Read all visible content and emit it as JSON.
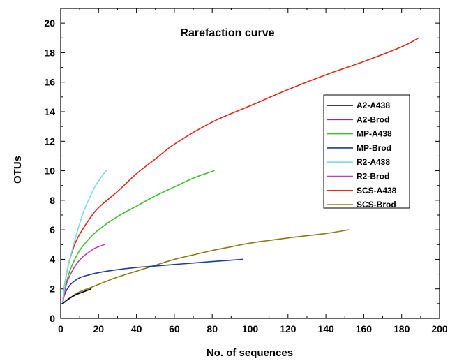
{
  "chart_data": {
    "type": "line",
    "title": "Rarefaction curve",
    "xlabel": "No. of sequences",
    "ylabel": "OTUs",
    "xlim": [
      0,
      200
    ],
    "ylim": [
      0,
      21
    ],
    "xticks": [
      0,
      20,
      40,
      60,
      80,
      100,
      120,
      140,
      160,
      180,
      200
    ],
    "yticks": [
      0,
      2,
      4,
      6,
      8,
      10,
      12,
      14,
      16,
      18,
      20
    ],
    "grid": false,
    "legend_position": "right",
    "series": [
      {
        "name": "A2-A438",
        "color": "#000000",
        "points": [
          [
            1,
            1
          ],
          [
            4,
            1.3
          ],
          [
            8,
            1.6
          ],
          [
            12,
            1.8
          ],
          [
            16,
            2
          ]
        ]
      },
      {
        "name": "A2-Brod",
        "color": "#7b2fbe",
        "points": [
          [
            1,
            1
          ],
          [
            4,
            1.3
          ],
          [
            8,
            1.6
          ],
          [
            12,
            1.8
          ],
          [
            15,
            1.95
          ]
        ]
      },
      {
        "name": "MP-A438",
        "color": "#3fbf2f",
        "points": [
          [
            1,
            1
          ],
          [
            2,
            1.9
          ],
          [
            4,
            2.9
          ],
          [
            6,
            3.6
          ],
          [
            10,
            4.6
          ],
          [
            15,
            5.4
          ],
          [
            20,
            6.0
          ],
          [
            30,
            6.9
          ],
          [
            40,
            7.6
          ],
          [
            50,
            8.3
          ],
          [
            60,
            8.9
          ],
          [
            70,
            9.5
          ],
          [
            81,
            10
          ]
        ]
      },
      {
        "name": "MP-Brod",
        "color": "#1f3a9e",
        "points": [
          [
            1,
            1
          ],
          [
            2,
            1.6
          ],
          [
            4,
            2.1
          ],
          [
            6,
            2.4
          ],
          [
            10,
            2.75
          ],
          [
            15,
            2.95
          ],
          [
            20,
            3.1
          ],
          [
            30,
            3.3
          ],
          [
            40,
            3.45
          ],
          [
            50,
            3.55
          ],
          [
            60,
            3.65
          ],
          [
            70,
            3.75
          ],
          [
            80,
            3.85
          ],
          [
            96,
            4
          ]
        ]
      },
      {
        "name": "R2-A438",
        "color": "#7fdcd8",
        "points": [
          [
            1,
            1
          ],
          [
            3,
            3.0
          ],
          [
            6,
            4.6
          ],
          [
            9,
            6.0
          ],
          [
            12,
            7.2
          ],
          [
            15,
            8.1
          ],
          [
            18,
            8.9
          ],
          [
            21,
            9.5
          ],
          [
            24,
            10
          ]
        ]
      },
      {
        "name": "R2-Brod",
        "color": "#c03fb5",
        "points": [
          [
            1,
            1
          ],
          [
            3,
            2.3
          ],
          [
            6,
            3.2
          ],
          [
            9,
            3.8
          ],
          [
            12,
            4.2
          ],
          [
            15,
            4.5
          ],
          [
            18,
            4.75
          ],
          [
            21,
            4.9
          ],
          [
            23,
            5
          ]
        ]
      },
      {
        "name": "SCS-A438",
        "color": "#e0281d",
        "points": [
          [
            1,
            1
          ],
          [
            2,
            2.2
          ],
          [
            4,
            3.6
          ],
          [
            6,
            4.5
          ],
          [
            8,
            5.2
          ],
          [
            10,
            5.7
          ],
          [
            15,
            6.7
          ],
          [
            20,
            7.5
          ],
          [
            30,
            8.6
          ],
          [
            40,
            9.8
          ],
          [
            50,
            10.8
          ],
          [
            60,
            11.8
          ],
          [
            80,
            13.3
          ],
          [
            100,
            14.4
          ],
          [
            120,
            15.5
          ],
          [
            140,
            16.5
          ],
          [
            160,
            17.4
          ],
          [
            180,
            18.4
          ],
          [
            189,
            19
          ]
        ]
      },
      {
        "name": "SCS-Brod",
        "color": "#8a7c12",
        "points": [
          [
            1,
            1
          ],
          [
            5,
            1.4
          ],
          [
            10,
            1.8
          ],
          [
            16,
            2.1
          ],
          [
            20,
            2.3
          ],
          [
            30,
            2.8
          ],
          [
            40,
            3.2
          ],
          [
            50,
            3.6
          ],
          [
            60,
            4.0
          ],
          [
            70,
            4.3
          ],
          [
            80,
            4.6
          ],
          [
            90,
            4.85
          ],
          [
            100,
            5.1
          ],
          [
            120,
            5.45
          ],
          [
            140,
            5.75
          ],
          [
            152,
            6
          ]
        ]
      }
    ]
  }
}
